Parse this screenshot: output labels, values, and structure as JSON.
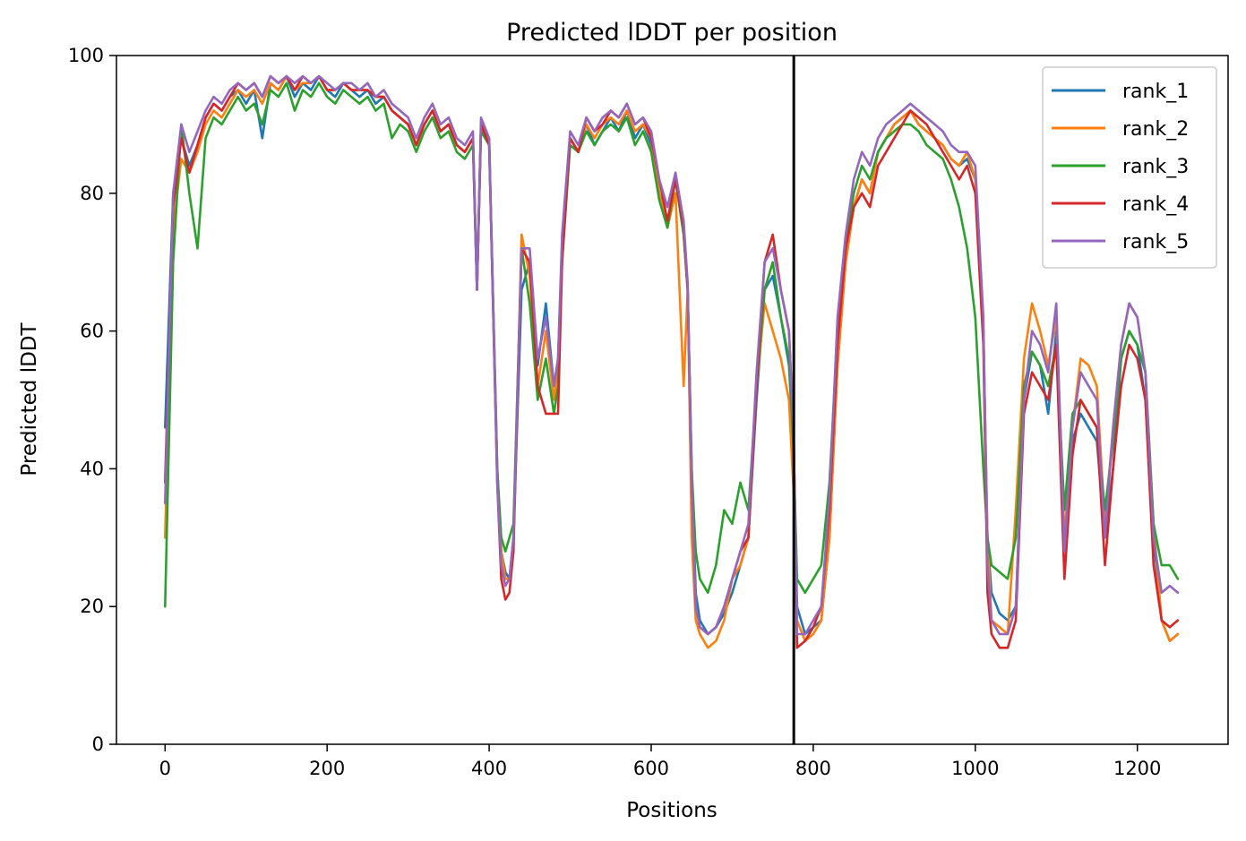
{
  "chart_data": {
    "type": "line",
    "title": "Predicted lDDT per position",
    "xlabel": "Positions",
    "ylabel": "Predicted lDDT",
    "xlim": [
      -60,
      1312
    ],
    "ylim": [
      0,
      100
    ],
    "xticks": [
      0,
      200,
      400,
      600,
      800,
      1000,
      1200
    ],
    "yticks": [
      0,
      20,
      40,
      60,
      80,
      100
    ],
    "grid": false,
    "legend_position": "top-right",
    "vline_x": 776,
    "x": [
      0,
      10,
      20,
      30,
      40,
      50,
      60,
      70,
      80,
      90,
      100,
      110,
      120,
      130,
      140,
      150,
      160,
      170,
      180,
      190,
      200,
      210,
      220,
      230,
      240,
      250,
      260,
      270,
      280,
      290,
      300,
      310,
      320,
      330,
      340,
      350,
      360,
      370,
      380,
      385,
      390,
      400,
      410,
      415,
      420,
      425,
      430,
      440,
      450,
      460,
      470,
      480,
      485,
      490,
      500,
      510,
      520,
      530,
      540,
      550,
      560,
      570,
      580,
      590,
      600,
      610,
      620,
      630,
      640,
      645,
      650,
      655,
      660,
      670,
      680,
      690,
      700,
      710,
      720,
      730,
      740,
      750,
      760,
      770,
      776,
      780,
      790,
      800,
      810,
      820,
      830,
      840,
      850,
      860,
      870,
      880,
      890,
      900,
      910,
      920,
      930,
      940,
      950,
      960,
      970,
      980,
      990,
      1000,
      1010,
      1015,
      1020,
      1030,
      1040,
      1050,
      1060,
      1070,
      1080,
      1090,
      1100,
      1110,
      1120,
      1130,
      1140,
      1150,
      1160,
      1170,
      1180,
      1190,
      1200,
      1210,
      1220,
      1230,
      1240,
      1250
    ],
    "series": [
      {
        "name": "rank_1",
        "color": "#1f77b4",
        "values": [
          46,
          80,
          88,
          84,
          87,
          91,
          93,
          92,
          94,
          95,
          93,
          95,
          88,
          96,
          95,
          97,
          94,
          96,
          95,
          97,
          95,
          94,
          96,
          95,
          94,
          95,
          93,
          94,
          92,
          91,
          90,
          87,
          90,
          92,
          89,
          90,
          87,
          86,
          88,
          66,
          90,
          88,
          40,
          28,
          25,
          24,
          30,
          66,
          70,
          55,
          64,
          52,
          56,
          72,
          88,
          86,
          90,
          87,
          89,
          91,
          89,
          92,
          88,
          90,
          87,
          80,
          76,
          82,
          74,
          66,
          40,
          22,
          18,
          16,
          17,
          19,
          22,
          26,
          30,
          50,
          66,
          68,
          62,
          55,
          42,
          20,
          16,
          17,
          18,
          30,
          55,
          70,
          78,
          82,
          80,
          86,
          88,
          90,
          91,
          92,
          90,
          89,
          88,
          87,
          85,
          84,
          85,
          82,
          60,
          30,
          22,
          19,
          18,
          20,
          50,
          57,
          55,
          48,
          60,
          28,
          44,
          48,
          46,
          44,
          30,
          40,
          56,
          60,
          58,
          50,
          30,
          18,
          15,
          16
        ]
      },
      {
        "name": "rank_2",
        "color": "#ff7f0e",
        "values": [
          30,
          75,
          85,
          83,
          86,
          90,
          92,
          91,
          93,
          95,
          94,
          95,
          93,
          96,
          95,
          97,
          95,
          96,
          96,
          97,
          95,
          95,
          96,
          95,
          95,
          95,
          94,
          94,
          92,
          91,
          90,
          87,
          90,
          92,
          89,
          90,
          87,
          86,
          88,
          66,
          90,
          87,
          40,
          28,
          24,
          24,
          30,
          74,
          68,
          52,
          60,
          50,
          55,
          72,
          88,
          86,
          90,
          88,
          90,
          91,
          90,
          92,
          89,
          90,
          88,
          80,
          75,
          80,
          52,
          66,
          30,
          18,
          16,
          14,
          15,
          18,
          24,
          26,
          30,
          52,
          64,
          60,
          56,
          50,
          36,
          18,
          15,
          16,
          18,
          30,
          55,
          70,
          78,
          82,
          80,
          86,
          88,
          90,
          91,
          92,
          90,
          89,
          88,
          87,
          85,
          84,
          86,
          82,
          60,
          30,
          18,
          17,
          16,
          34,
          56,
          64,
          60,
          55,
          62,
          30,
          46,
          56,
          55,
          52,
          32,
          46,
          58,
          64,
          62,
          54,
          32,
          18,
          15,
          16
        ]
      },
      {
        "name": "rank_3",
        "color": "#2ca02c",
        "values": [
          20,
          70,
          90,
          80,
          72,
          88,
          91,
          90,
          92,
          94,
          92,
          93,
          90,
          95,
          94,
          96,
          92,
          95,
          94,
          96,
          94,
          93,
          95,
          94,
          93,
          94,
          92,
          93,
          88,
          90,
          89,
          86,
          89,
          91,
          88,
          89,
          86,
          85,
          87,
          66,
          89,
          87,
          40,
          30,
          28,
          30,
          32,
          72,
          64,
          50,
          56,
          48,
          52,
          70,
          87,
          86,
          89,
          87,
          89,
          90,
          89,
          91,
          87,
          89,
          86,
          79,
          75,
          82,
          74,
          66,
          40,
          28,
          24,
          22,
          26,
          34,
          32,
          38,
          34,
          52,
          66,
          70,
          62,
          56,
          42,
          24,
          22,
          24,
          26,
          38,
          60,
          72,
          80,
          84,
          82,
          86,
          88,
          89,
          90,
          90,
          89,
          87,
          86,
          85,
          82,
          78,
          72,
          62,
          40,
          30,
          26,
          25,
          24,
          30,
          52,
          57,
          55,
          52,
          58,
          34,
          48,
          50,
          48,
          46,
          34,
          44,
          56,
          60,
          58,
          54,
          32,
          26,
          26,
          24
        ]
      },
      {
        "name": "rank_4",
        "color": "#d62728",
        "values": [
          38,
          78,
          88,
          83,
          87,
          91,
          93,
          92,
          94,
          96,
          95,
          96,
          94,
          97,
          96,
          97,
          95,
          97,
          96,
          97,
          95,
          95,
          96,
          95,
          95,
          95,
          94,
          94,
          92,
          91,
          90,
          87,
          90,
          92,
          89,
          90,
          87,
          86,
          88,
          66,
          90,
          87,
          38,
          24,
          21,
          22,
          28,
          72,
          70,
          52,
          48,
          48,
          48,
          70,
          88,
          86,
          91,
          89,
          90,
          92,
          91,
          93,
          90,
          91,
          88,
          82,
          76,
          82,
          75,
          66,
          38,
          20,
          17,
          16,
          17,
          20,
          24,
          28,
          30,
          52,
          70,
          74,
          66,
          60,
          44,
          14,
          15,
          17,
          20,
          34,
          58,
          72,
          78,
          80,
          78,
          84,
          86,
          88,
          90,
          92,
          91,
          90,
          88,
          86,
          84,
          82,
          84,
          80,
          58,
          22,
          16,
          14,
          14,
          18,
          48,
          54,
          52,
          50,
          58,
          24,
          42,
          50,
          48,
          46,
          26,
          40,
          52,
          58,
          56,
          50,
          26,
          18,
          17,
          18
        ]
      },
      {
        "name": "rank_5",
        "color": "#9467bd",
        "values": [
          35,
          80,
          90,
          86,
          89,
          92,
          94,
          93,
          95,
          96,
          95,
          96,
          94,
          97,
          96,
          97,
          96,
          97,
          96,
          97,
          96,
          95,
          96,
          96,
          95,
          96,
          94,
          95,
          93,
          92,
          91,
          88,
          91,
          93,
          90,
          91,
          88,
          87,
          89,
          66,
          91,
          88,
          38,
          26,
          23,
          24,
          30,
          72,
          72,
          56,
          62,
          52,
          56,
          74,
          89,
          87,
          91,
          89,
          91,
          92,
          91,
          93,
          90,
          91,
          89,
          82,
          78,
          83,
          76,
          67,
          38,
          20,
          17,
          16,
          17,
          20,
          24,
          28,
          32,
          54,
          70,
          72,
          66,
          60,
          44,
          16,
          16,
          18,
          20,
          36,
          62,
          74,
          82,
          86,
          84,
          88,
          90,
          91,
          92,
          93,
          92,
          91,
          90,
          89,
          87,
          86,
          86,
          84,
          62,
          26,
          18,
          16,
          16,
          20,
          50,
          60,
          58,
          54,
          64,
          28,
          46,
          54,
          52,
          50,
          30,
          46,
          58,
          64,
          62,
          54,
          30,
          22,
          23,
          22
        ]
      }
    ]
  }
}
